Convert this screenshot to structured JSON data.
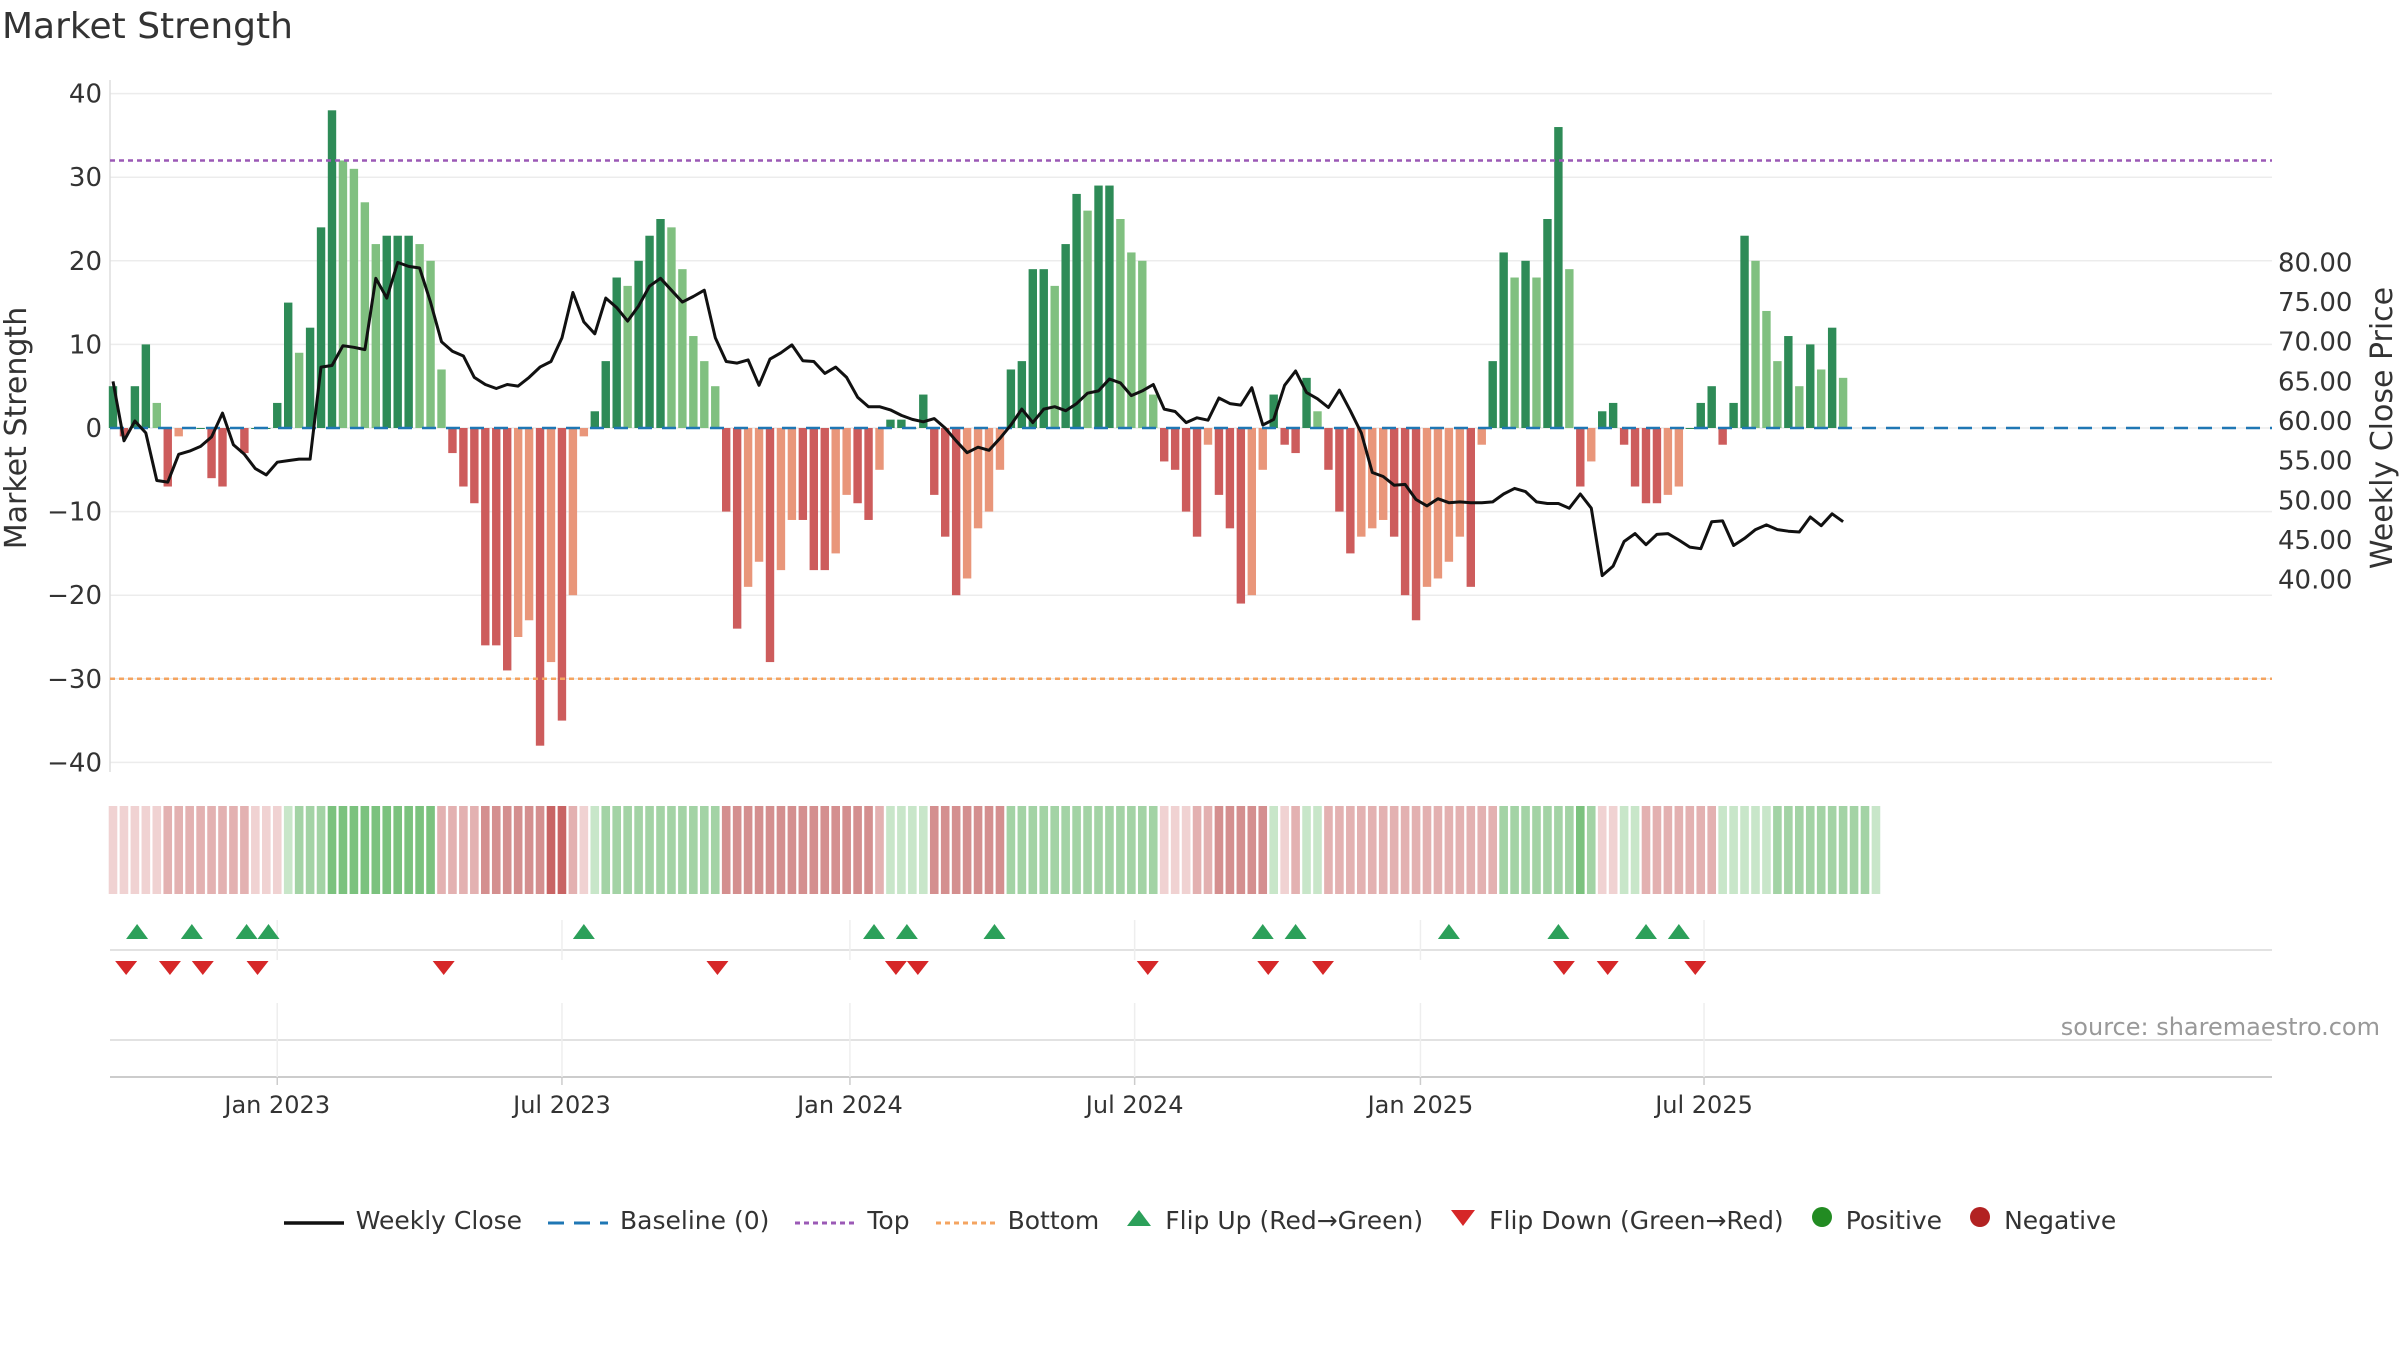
{
  "title": "Market Strength",
  "source": "source: sharemaestro.com",
  "colors": {
    "pos_dark": "#2e8b57",
    "pos_light": "#80c080",
    "neg_dark": "#cd5c5c",
    "neg_light": "#e9967a",
    "price": "#111111",
    "baseline": "#1f77b4",
    "top": "#9b59b6",
    "bottom": "#f4a460",
    "flip_up": "#2ca05a",
    "flip_down": "#d62728",
    "positive": "#228b22",
    "negative": "#b22222"
  },
  "chart_data": {
    "type": "bar",
    "title": "Market Strength",
    "ylabel": "Market Strength",
    "y2label": "Weekly Close Price",
    "ylim": [
      -42,
      42
    ],
    "y2lim": [
      36.5,
      81.5
    ],
    "yticks": [
      "−40",
      "−30",
      "−20",
      "−10",
      "0",
      "10",
      "20",
      "30",
      "40"
    ],
    "yticks_values": [
      -40,
      -30,
      -20,
      -10,
      0,
      10,
      20,
      30,
      40
    ],
    "y2ticks": [
      "40.00",
      "45.00",
      "50.00",
      "55.00",
      "60.00",
      "65.00",
      "70.00",
      "75.00",
      "80.00"
    ],
    "y2ticks_values": [
      40,
      45,
      50,
      55,
      60,
      65,
      70,
      75,
      80
    ],
    "top_level": 32,
    "bottom_level": -30,
    "x_start_week": 0,
    "x_end_week": 156,
    "xticks": [
      {
        "label": "Jan 2023",
        "week": 15
      },
      {
        "label": "Jul 2023",
        "week": 41
      },
      {
        "label": "Jan 2024",
        "week": 67.3
      },
      {
        "label": "Jul 2024",
        "week": 93.3
      },
      {
        "label": "Jan 2025",
        "week": 119.4
      },
      {
        "label": "Jul 2025",
        "week": 145.3
      }
    ],
    "strength": [
      5,
      -1,
      5,
      10,
      3,
      -7,
      -1,
      0,
      0,
      -6,
      -7,
      0,
      -3,
      0,
      0,
      3,
      15,
      9,
      12,
      24,
      38,
      32,
      31,
      27,
      22,
      23,
      23,
      23,
      22,
      20,
      7,
      -3,
      -7,
      -9,
      -26,
      -26,
      -29,
      -25,
      -23,
      -38,
      -28,
      -35,
      -20,
      -1,
      2,
      8,
      18,
      17,
      20,
      23,
      25,
      24,
      19,
      11,
      8,
      5,
      -10,
      -24,
      -19,
      -16,
      -28,
      -17,
      -11,
      -11,
      -17,
      -17,
      -15,
      -8,
      -9,
      -11,
      -5,
      1,
      1,
      0,
      4,
      -8,
      -13,
      -20,
      -18,
      -12,
      -10,
      -5,
      7,
      8,
      19,
      19,
      17,
      22,
      28,
      26,
      29,
      29,
      25,
      21,
      20,
      4,
      -4,
      -5,
      -10,
      -13,
      -2,
      -8,
      -12,
      -21,
      -20,
      -5,
      4,
      -2,
      -3,
      6,
      2,
      -5,
      -10,
      -15,
      -13,
      -12,
      -11,
      -13,
      -20,
      -23,
      -19,
      -18,
      -16,
      -13,
      -19,
      -2,
      8,
      21,
      18,
      20,
      18,
      25,
      36,
      19,
      -7,
      -4,
      2,
      3,
      -2,
      -7,
      -9,
      -9,
      -8,
      -7,
      0,
      3,
      5,
      -2,
      3,
      23,
      20,
      14,
      8,
      11,
      5,
      10,
      7,
      12,
      6
    ],
    "price": [
      65,
      57.5,
      60,
      58.5,
      52.5,
      52.3,
      55.8,
      56.2,
      56.8,
      58,
      61,
      57,
      55.8,
      54,
      53.2,
      54.8,
      55,
      55.2,
      55.2,
      66.8,
      67,
      69.5,
      69.3,
      69,
      78,
      75.5,
      80,
      79.5,
      79.3,
      75,
      70,
      68.8,
      68.2,
      65.5,
      64.6,
      64.1,
      64.6,
      64.4,
      65.5,
      66.8,
      67.5,
      70.5,
      76.2,
      72.5,
      71,
      75.5,
      74.3,
      72.6,
      74.5,
      77,
      78,
      76.5,
      75,
      75.7,
      76.5,
      70.5,
      67.5,
      67.3,
      67.7,
      64.5,
      67.8,
      68.6,
      69.6,
      67.6,
      67.5,
      66,
      66.8,
      65.5,
      63,
      61.8,
      61.8,
      61.4,
      60.7,
      60.2,
      59.9,
      60.3,
      59.1,
      57.5,
      56,
      56.7,
      56.3,
      57.8,
      59.5,
      61.5,
      59.8,
      61.5,
      61.8,
      61.3,
      62.2,
      63.5,
      63.8,
      65.3,
      64.8,
      63.2,
      63.8,
      64.6,
      61.5,
      61.2,
      59.8,
      60.4,
      60.1,
      62.9,
      62.2,
      62,
      64.2,
      59.5,
      60.2,
      64.5,
      66.3,
      63.6,
      62.8,
      61.7,
      63.9,
      61.3,
      58.5,
      53.5,
      53,
      51.9,
      52,
      50.1,
      49.3,
      50.2,
      49.7,
      49.8,
      49.7,
      49.7,
      49.8,
      50.8,
      51.5,
      51.1,
      49.8,
      49.6,
      49.6,
      49,
      50.8,
      49,
      40.5,
      41.7,
      44.8,
      45.8,
      44.4,
      45.7,
      45.8,
      45,
      44.1,
      43.9,
      47.3,
      47.4,
      44.3,
      45.2,
      46.3,
      46.9,
      46.3,
      46.1,
      46,
      47.9,
      46.8,
      48.3,
      47.3
    ],
    "strip": [
      -1,
      -1,
      -1,
      -1,
      -1,
      -2,
      -2,
      -2,
      -2,
      -2,
      -2,
      -2,
      -2,
      -1,
      -1,
      -1,
      1,
      2,
      2,
      2,
      3,
      3,
      3,
      3,
      3,
      3,
      3,
      3,
      3,
      3,
      -2,
      -2,
      -2,
      -2,
      -3,
      -3,
      -3,
      -3,
      -3,
      -3,
      -4,
      -4,
      -2,
      -1,
      1,
      2,
      2,
      2,
      2,
      2,
      2,
      2,
      2,
      2,
      2,
      2,
      -3,
      -3,
      -3,
      -3,
      -3,
      -3,
      -3,
      -3,
      -3,
      -3,
      -3,
      -3,
      -3,
      -3,
      -2,
      1,
      1,
      1,
      1,
      -3,
      -3,
      -3,
      -3,
      -3,
      -3,
      -3,
      2,
      2,
      2,
      2,
      2,
      2,
      2,
      2,
      2,
      2,
      2,
      2,
      2,
      2,
      -1,
      -1,
      -1,
      -2,
      -2,
      -3,
      -3,
      -3,
      -3,
      -3,
      1,
      -1,
      -2,
      1,
      1,
      -2,
      -2,
      -2,
      -2,
      -2,
      -2,
      -2,
      -2,
      -2,
      -2,
      -2,
      -2,
      -2,
      -2,
      -2,
      -2,
      2,
      2,
      2,
      2,
      2,
      2,
      2,
      3,
      2,
      -1,
      -1,
      1,
      1,
      -2,
      -2,
      -2,
      -2,
      -2,
      -2,
      -2,
      1,
      1,
      1,
      1,
      1,
      2,
      2,
      2,
      2,
      2,
      2,
      2,
      2,
      2,
      1
    ],
    "flip_up_weeks": [
      2.2,
      7.2,
      12.2,
      14.2,
      43,
      69.5,
      72.5,
      80.5,
      105,
      108,
      122,
      132,
      140,
      143
    ],
    "flip_down_weeks": [
      1.2,
      5.2,
      8.2,
      13.2,
      30.2,
      55.2,
      71.5,
      73.5,
      94.5,
      105.5,
      110.5,
      132.5,
      136.5,
      144.5
    ]
  },
  "legend": [
    {
      "key": "weekly_close",
      "label": "Weekly Close"
    },
    {
      "key": "baseline",
      "label": "Baseline (0)"
    },
    {
      "key": "top",
      "label": "Top"
    },
    {
      "key": "bottom",
      "label": "Bottom"
    },
    {
      "key": "flip_up",
      "label": "Flip Up (Red→Green)"
    },
    {
      "key": "flip_down",
      "label": "Flip Down (Green→Red)"
    },
    {
      "key": "positive",
      "label": "Positive"
    },
    {
      "key": "negative",
      "label": "Negative"
    }
  ]
}
